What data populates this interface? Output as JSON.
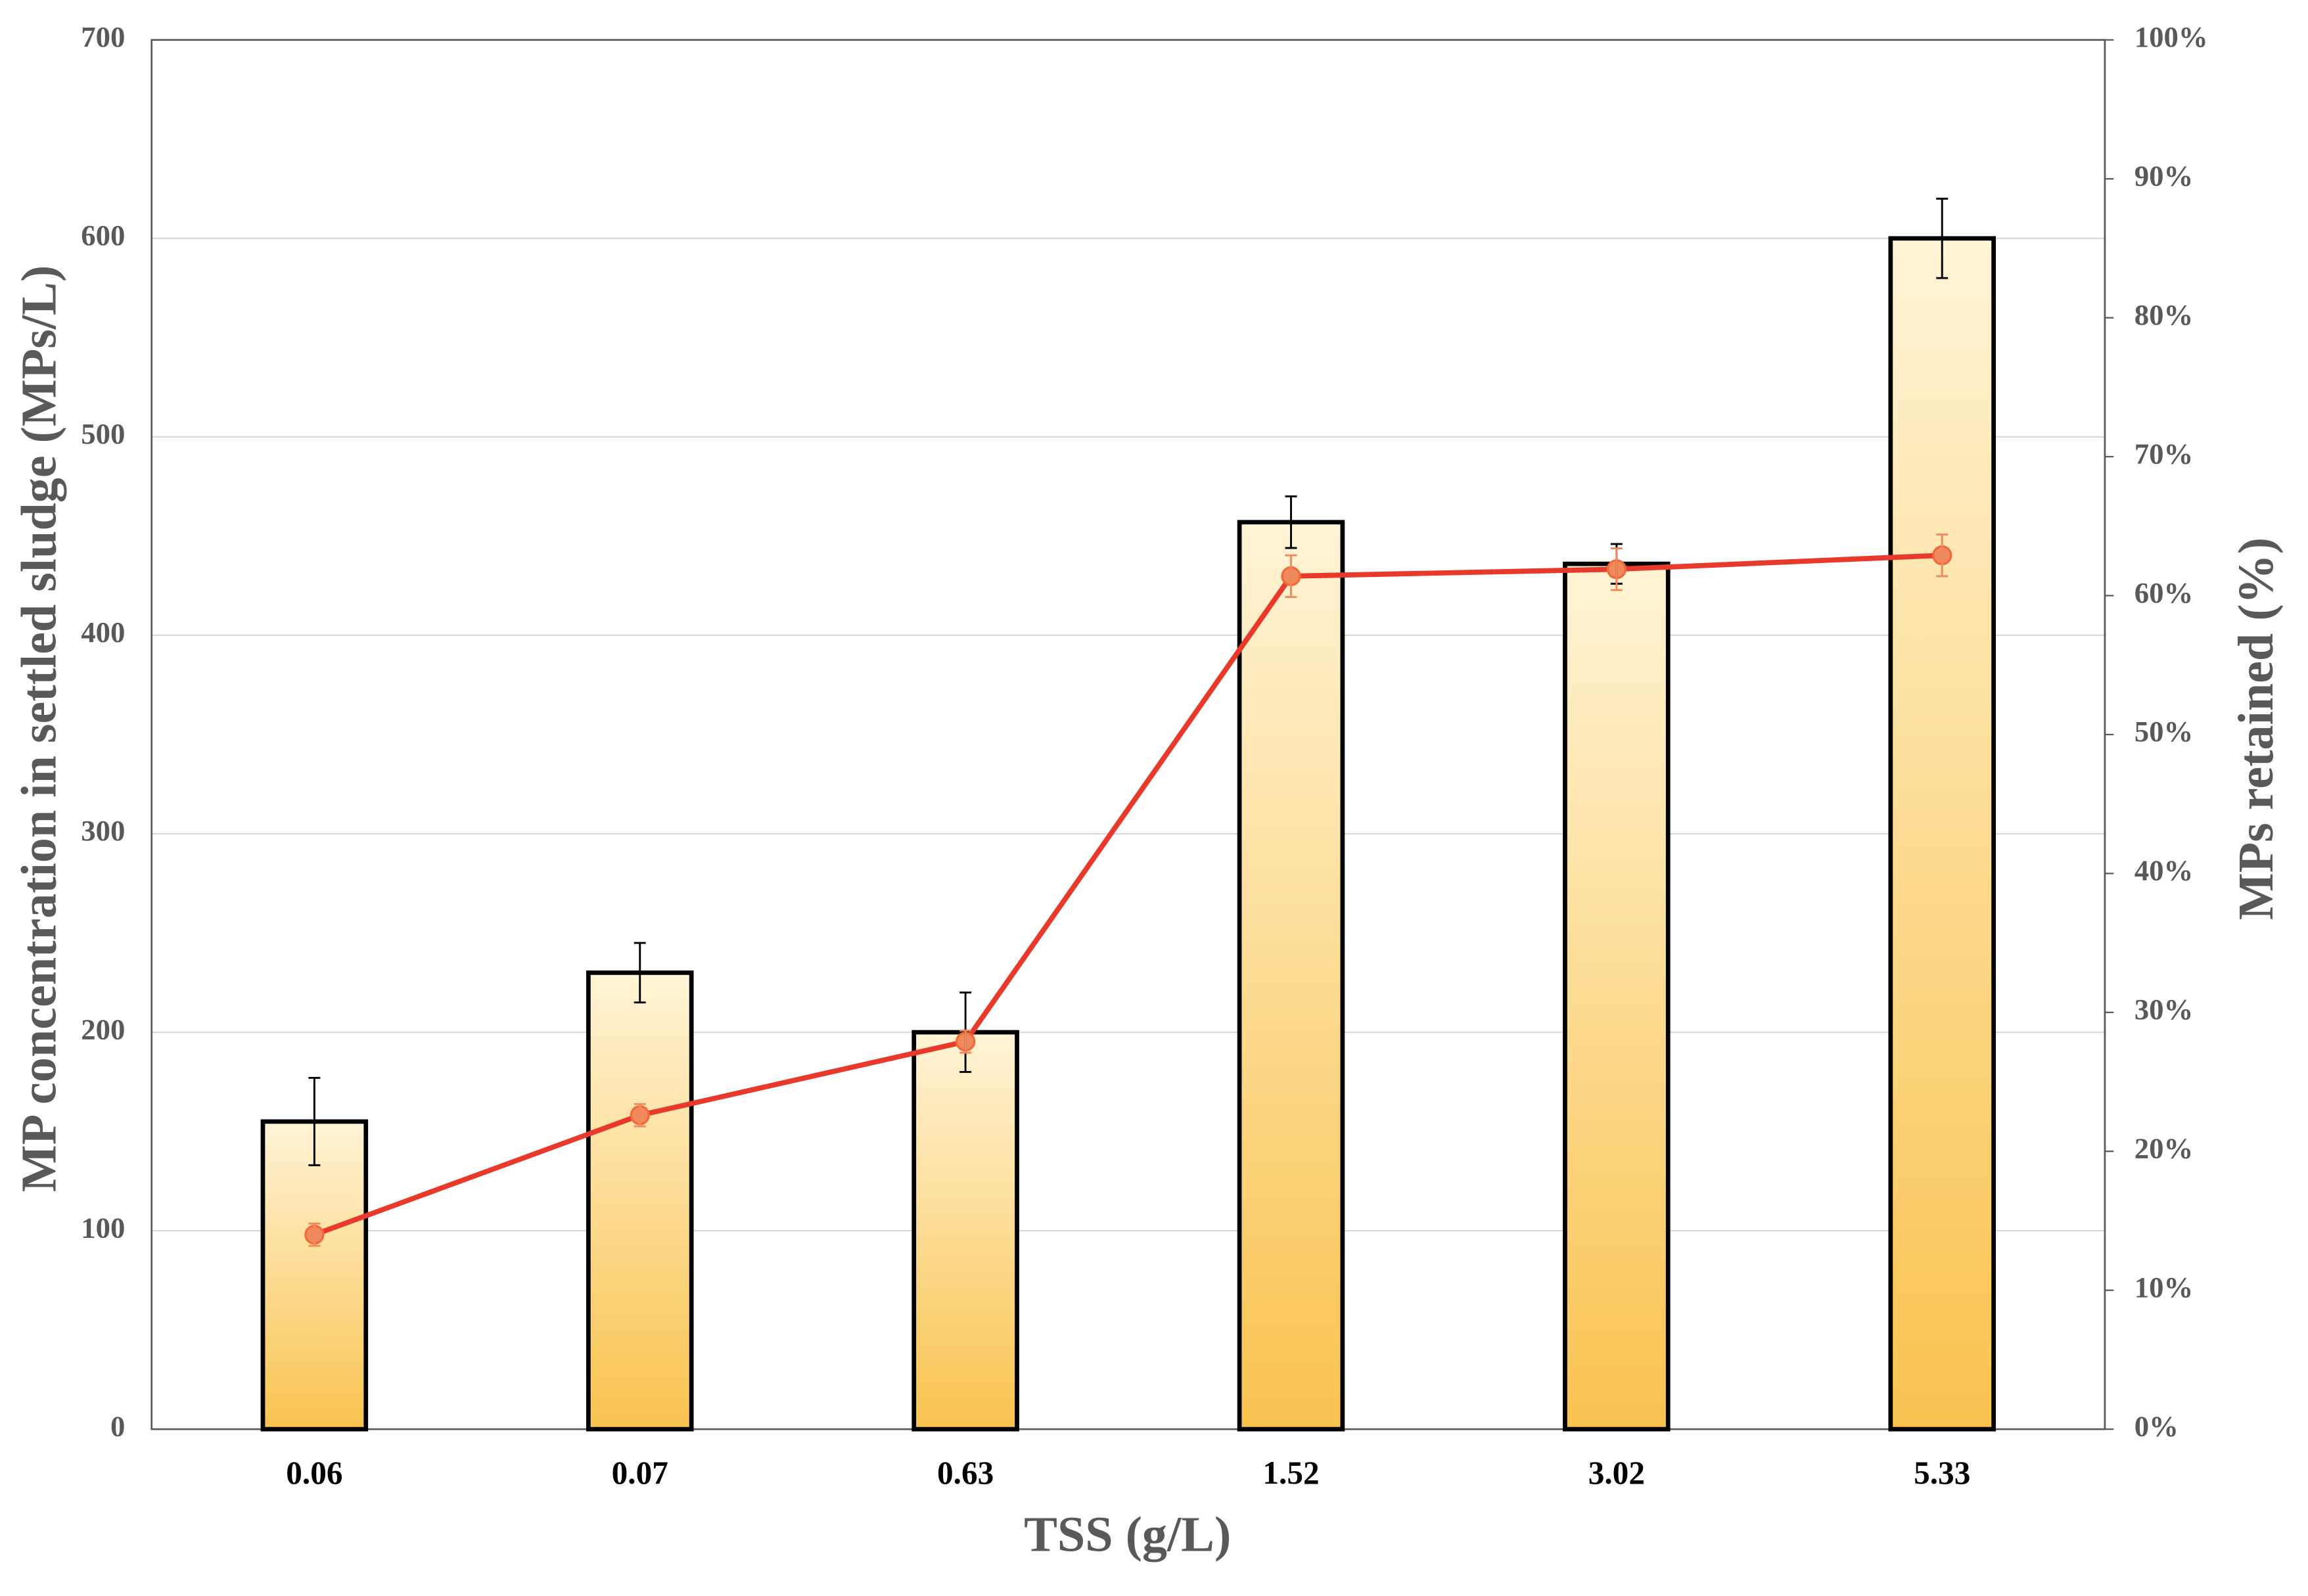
{
  "chart_data": {
    "type": "bar-line",
    "x_label": "TSS (g/L)",
    "y_label": "MP concentration in settled sludge (MPs/L)",
    "y2_label": "MPs retained (%)",
    "categories": [
      "0.06",
      "0.07",
      "0.63",
      "1.52",
      "3.02",
      "5.33"
    ],
    "series": [
      {
        "type": "bar",
        "color": "#f9c34f",
        "values": [
          155,
          230,
          200,
          457,
          436,
          600
        ],
        "errors": [
          22,
          15,
          20,
          13,
          10,
          20
        ]
      },
      {
        "type": "line",
        "axis": "y2",
        "color": "#e8392b",
        "values": [
          14,
          22.6,
          27.9,
          61.4,
          61.9,
          62.9
        ],
        "errors": [
          0.8,
          0.8,
          0.8,
          1.5,
          1.5,
          1.5
        ]
      }
    ],
    "ylim": [
      0,
      700
    ],
    "yticks": [
      0,
      100,
      200,
      300,
      400,
      500,
      600,
      700
    ],
    "y2lim": [
      0,
      100
    ],
    "y2ticks": [
      {
        "value": 0,
        "label": "0%"
      },
      {
        "value": 10,
        "label": "10%"
      },
      {
        "value": 20,
        "label": "20%"
      },
      {
        "value": 30,
        "label": "30%"
      },
      {
        "value": 40,
        "label": "40%"
      },
      {
        "value": 50,
        "label": "50%"
      },
      {
        "value": 60,
        "label": "60%"
      },
      {
        "value": 70,
        "label": "70%"
      },
      {
        "value": 80,
        "label": "80%"
      },
      {
        "value": 90,
        "label": "90%"
      },
      {
        "value": 100,
        "label": "100%"
      }
    ],
    "grid": true
  }
}
